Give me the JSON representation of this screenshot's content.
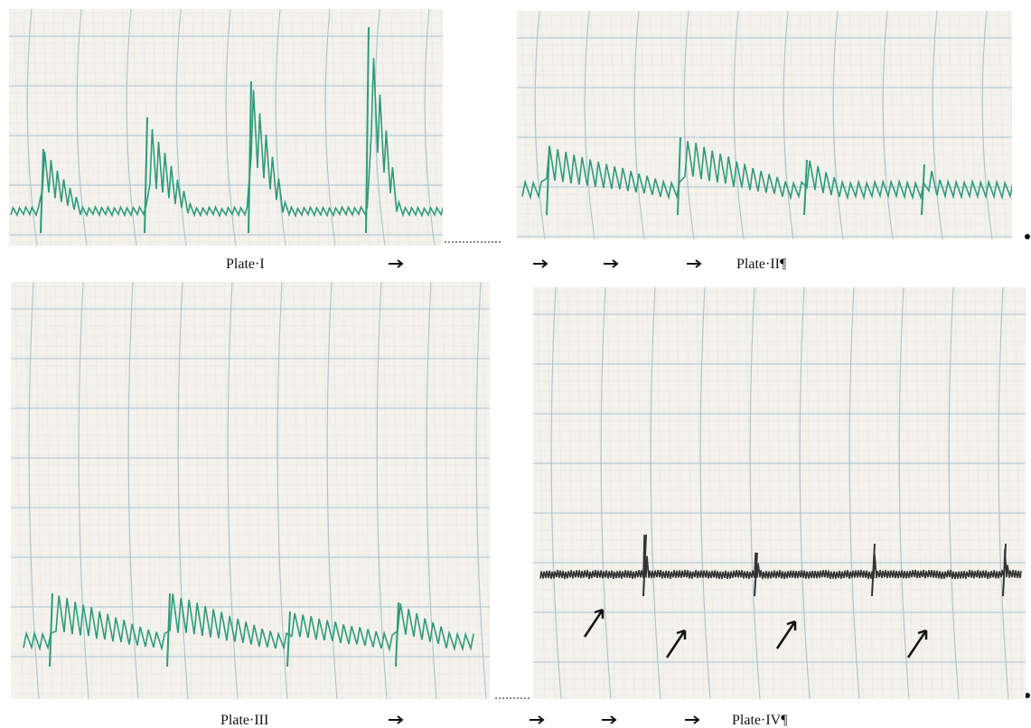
{
  "plates": [
    {
      "label": "Plate·I"
    },
    {
      "label": "Plate·II¶"
    },
    {
      "label": "Plate·III"
    },
    {
      "label": "Plate·IV¶"
    }
  ]
}
